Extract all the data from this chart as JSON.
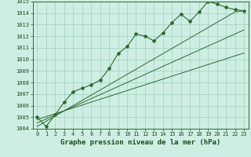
{
  "title": "Graphe pression niveau de la mer (hPa)",
  "x": [
    0,
    1,
    2,
    3,
    4,
    5,
    6,
    7,
    8,
    9,
    10,
    11,
    12,
    13,
    14,
    15,
    16,
    17,
    18,
    19,
    20,
    21,
    22,
    23
  ],
  "y_main": [
    1005.0,
    1004.2,
    1005.2,
    1006.3,
    1007.2,
    1007.5,
    1007.8,
    1008.2,
    1009.2,
    1010.5,
    1011.1,
    1012.2,
    1012.0,
    1011.6,
    1012.3,
    1013.2,
    1013.9,
    1013.3,
    1014.1,
    1015.0,
    1014.8,
    1014.5,
    1014.3,
    1014.2
  ],
  "y_line1": [
    1004.8,
    1005.05,
    1005.3,
    1005.55,
    1005.8,
    1006.05,
    1006.3,
    1006.55,
    1006.8,
    1007.05,
    1007.3,
    1007.55,
    1007.8,
    1008.05,
    1008.3,
    1008.55,
    1008.8,
    1009.05,
    1009.3,
    1009.55,
    1009.8,
    1010.05,
    1010.3,
    1010.55
  ],
  "y_line2": [
    1004.5,
    1004.85,
    1005.2,
    1005.55,
    1005.9,
    1006.25,
    1006.6,
    1006.95,
    1007.3,
    1007.65,
    1008.0,
    1008.35,
    1008.7,
    1009.05,
    1009.4,
    1009.75,
    1010.1,
    1010.45,
    1010.8,
    1011.15,
    1011.5,
    1011.85,
    1012.2,
    1012.55
  ],
  "y_line3": [
    1004.2,
    1004.65,
    1005.1,
    1005.55,
    1006.0,
    1006.45,
    1006.9,
    1007.35,
    1007.8,
    1008.25,
    1008.7,
    1009.15,
    1009.6,
    1010.05,
    1010.5,
    1010.95,
    1011.4,
    1011.85,
    1012.3,
    1012.75,
    1013.2,
    1013.65,
    1014.1,
    1014.2
  ],
  "ylim": [
    1004,
    1015
  ],
  "yticks": [
    1004,
    1005,
    1006,
    1007,
    1008,
    1009,
    1010,
    1011,
    1012,
    1013,
    1014,
    1015
  ],
  "xticks": [
    0,
    1,
    2,
    3,
    4,
    5,
    6,
    7,
    8,
    9,
    10,
    11,
    12,
    13,
    14,
    15,
    16,
    17,
    18,
    19,
    20,
    21,
    22,
    23
  ],
  "line_color": "#2d6a2d",
  "bg_color": "#ceeee4",
  "grid_color": "#9ecfbf",
  "title_color": "#1a4d1a",
  "title_fontsize": 6.5,
  "tick_fontsize": 5.0,
  "marker": "*"
}
